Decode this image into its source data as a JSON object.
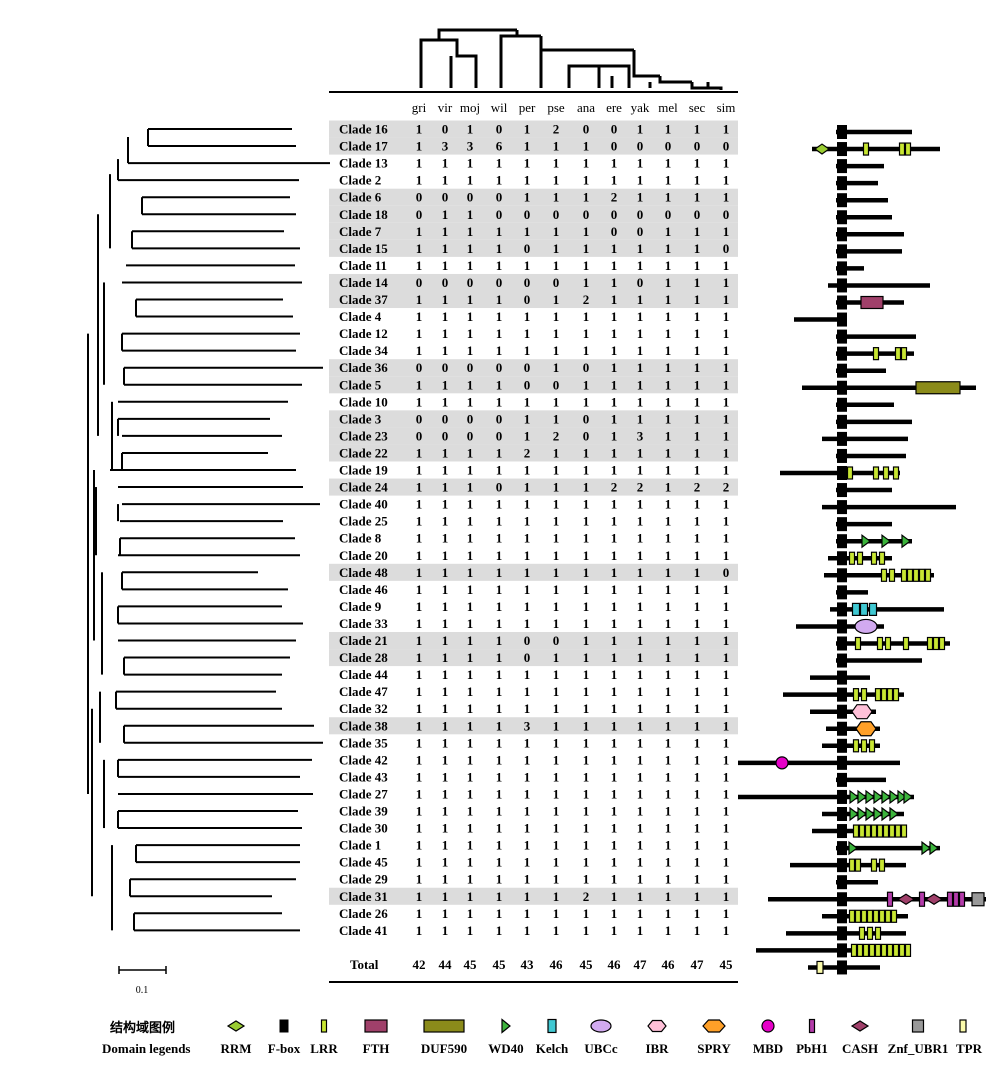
{
  "header": {
    "species": [
      "gri",
      "vir",
      "moj",
      "wil",
      "per",
      "pse",
      "ana",
      "ere",
      "yak",
      "mel",
      "sec",
      "sim"
    ]
  },
  "clades": [
    {
      "name": "Clade 16",
      "counts": [
        1,
        0,
        1,
        0,
        1,
        2,
        0,
        0,
        1,
        1,
        1,
        1
      ],
      "shaded": true
    },
    {
      "name": "Clade 17",
      "counts": [
        1,
        3,
        3,
        6,
        1,
        1,
        1,
        0,
        0,
        0,
        0,
        0
      ],
      "shaded": true
    },
    {
      "name": "Clade 13",
      "counts": [
        1,
        1,
        1,
        1,
        1,
        1,
        1,
        1,
        1,
        1,
        1,
        1
      ],
      "shaded": false
    },
    {
      "name": "Clade 2",
      "counts": [
        1,
        1,
        1,
        1,
        1,
        1,
        1,
        1,
        1,
        1,
        1,
        1
      ],
      "shaded": false
    },
    {
      "name": "Clade 6",
      "counts": [
        0,
        0,
        0,
        0,
        1,
        1,
        1,
        2,
        1,
        1,
        1,
        1
      ],
      "shaded": true
    },
    {
      "name": "Clade 18",
      "counts": [
        0,
        1,
        1,
        0,
        0,
        0,
        0,
        0,
        0,
        0,
        0,
        0
      ],
      "shaded": true
    },
    {
      "name": "Clade 7",
      "counts": [
        1,
        1,
        1,
        1,
        1,
        1,
        1,
        0,
        0,
        1,
        1,
        1
      ],
      "shaded": true
    },
    {
      "name": "Clade 15",
      "counts": [
        1,
        1,
        1,
        1,
        0,
        1,
        1,
        1,
        1,
        1,
        1,
        0
      ],
      "shaded": true
    },
    {
      "name": "Clade 11",
      "counts": [
        1,
        1,
        1,
        1,
        1,
        1,
        1,
        1,
        1,
        1,
        1,
        1
      ],
      "shaded": false
    },
    {
      "name": "Clade 14",
      "counts": [
        0,
        0,
        0,
        0,
        0,
        0,
        1,
        1,
        0,
        1,
        1,
        1
      ],
      "shaded": true
    },
    {
      "name": "Clade 37",
      "counts": [
        1,
        1,
        1,
        1,
        0,
        1,
        2,
        1,
        1,
        1,
        1,
        1
      ],
      "shaded": true
    },
    {
      "name": "Clade 4",
      "counts": [
        1,
        1,
        1,
        1,
        1,
        1,
        1,
        1,
        1,
        1,
        1,
        1
      ],
      "shaded": false
    },
    {
      "name": "Clade 12",
      "counts": [
        1,
        1,
        1,
        1,
        1,
        1,
        1,
        1,
        1,
        1,
        1,
        1
      ],
      "shaded": false
    },
    {
      "name": "Clade 34",
      "counts": [
        1,
        1,
        1,
        1,
        1,
        1,
        1,
        1,
        1,
        1,
        1,
        1
      ],
      "shaded": false
    },
    {
      "name": "Clade 36",
      "counts": [
        0,
        0,
        0,
        0,
        0,
        1,
        0,
        1,
        1,
        1,
        1,
        1
      ],
      "shaded": true
    },
    {
      "name": "Clade 5",
      "counts": [
        1,
        1,
        1,
        1,
        0,
        0,
        1,
        1,
        1,
        1,
        1,
        1
      ],
      "shaded": true
    },
    {
      "name": "Clade 10",
      "counts": [
        1,
        1,
        1,
        1,
        1,
        1,
        1,
        1,
        1,
        1,
        1,
        1
      ],
      "shaded": false
    },
    {
      "name": "Clade 3",
      "counts": [
        0,
        0,
        0,
        0,
        1,
        1,
        0,
        1,
        1,
        1,
        1,
        1
      ],
      "shaded": true
    },
    {
      "name": "Clade 23",
      "counts": [
        0,
        0,
        0,
        0,
        1,
        2,
        0,
        1,
        3,
        1,
        1,
        1
      ],
      "shaded": true
    },
    {
      "name": "Clade 22",
      "counts": [
        1,
        1,
        1,
        1,
        2,
        1,
        1,
        1,
        1,
        1,
        1,
        1
      ],
      "shaded": true
    },
    {
      "name": "Clade 19",
      "counts": [
        1,
        1,
        1,
        1,
        1,
        1,
        1,
        1,
        1,
        1,
        1,
        1
      ],
      "shaded": false
    },
    {
      "name": "Clade 24",
      "counts": [
        1,
        1,
        1,
        0,
        1,
        1,
        1,
        2,
        2,
        1,
        2,
        2
      ],
      "shaded": true
    },
    {
      "name": "Clade 40",
      "counts": [
        1,
        1,
        1,
        1,
        1,
        1,
        1,
        1,
        1,
        1,
        1,
        1
      ],
      "shaded": false
    },
    {
      "name": "Clade 25",
      "counts": [
        1,
        1,
        1,
        1,
        1,
        1,
        1,
        1,
        1,
        1,
        1,
        1
      ],
      "shaded": false
    },
    {
      "name": "Clade 8",
      "counts": [
        1,
        1,
        1,
        1,
        1,
        1,
        1,
        1,
        1,
        1,
        1,
        1
      ],
      "shaded": false
    },
    {
      "name": "Clade 20",
      "counts": [
        1,
        1,
        1,
        1,
        1,
        1,
        1,
        1,
        1,
        1,
        1,
        1
      ],
      "shaded": false
    },
    {
      "name": "Clade 48",
      "counts": [
        1,
        1,
        1,
        1,
        1,
        1,
        1,
        1,
        1,
        1,
        1,
        0
      ],
      "shaded": true
    },
    {
      "name": "Clade 46",
      "counts": [
        1,
        1,
        1,
        1,
        1,
        1,
        1,
        1,
        1,
        1,
        1,
        1
      ],
      "shaded": false
    },
    {
      "name": "Clade 9",
      "counts": [
        1,
        1,
        1,
        1,
        1,
        1,
        1,
        1,
        1,
        1,
        1,
        1
      ],
      "shaded": false
    },
    {
      "name": "Clade 33",
      "counts": [
        1,
        1,
        1,
        1,
        1,
        1,
        1,
        1,
        1,
        1,
        1,
        1
      ],
      "shaded": false
    },
    {
      "name": "Clade 21",
      "counts": [
        1,
        1,
        1,
        1,
        0,
        0,
        1,
        1,
        1,
        1,
        1,
        1
      ],
      "shaded": true
    },
    {
      "name": "Clade 28",
      "counts": [
        1,
        1,
        1,
        1,
        0,
        1,
        1,
        1,
        1,
        1,
        1,
        1
      ],
      "shaded": true
    },
    {
      "name": "Clade 44",
      "counts": [
        1,
        1,
        1,
        1,
        1,
        1,
        1,
        1,
        1,
        1,
        1,
        1
      ],
      "shaded": false
    },
    {
      "name": "Clade 47",
      "counts": [
        1,
        1,
        1,
        1,
        1,
        1,
        1,
        1,
        1,
        1,
        1,
        1
      ],
      "shaded": false
    },
    {
      "name": "Clade 32",
      "counts": [
        1,
        1,
        1,
        1,
        1,
        1,
        1,
        1,
        1,
        1,
        1,
        1
      ],
      "shaded": false
    },
    {
      "name": "Clade 38",
      "counts": [
        1,
        1,
        1,
        1,
        3,
        1,
        1,
        1,
        1,
        1,
        1,
        1
      ],
      "shaded": true
    },
    {
      "name": "Clade 35",
      "counts": [
        1,
        1,
        1,
        1,
        1,
        1,
        1,
        1,
        1,
        1,
        1,
        1
      ],
      "shaded": false
    },
    {
      "name": "Clade 42",
      "counts": [
        1,
        1,
        1,
        1,
        1,
        1,
        1,
        1,
        1,
        1,
        1,
        1
      ],
      "shaded": false
    },
    {
      "name": "Clade 43",
      "counts": [
        1,
        1,
        1,
        1,
        1,
        1,
        1,
        1,
        1,
        1,
        1,
        1
      ],
      "shaded": false
    },
    {
      "name": "Clade 27",
      "counts": [
        1,
        1,
        1,
        1,
        1,
        1,
        1,
        1,
        1,
        1,
        1,
        1
      ],
      "shaded": false
    },
    {
      "name": "Clade 39",
      "counts": [
        1,
        1,
        1,
        1,
        1,
        1,
        1,
        1,
        1,
        1,
        1,
        1
      ],
      "shaded": false
    },
    {
      "name": "Clade 30",
      "counts": [
        1,
        1,
        1,
        1,
        1,
        1,
        1,
        1,
        1,
        1,
        1,
        1
      ],
      "shaded": false
    },
    {
      "name": "Clade 1",
      "counts": [
        1,
        1,
        1,
        1,
        1,
        1,
        1,
        1,
        1,
        1,
        1,
        1
      ],
      "shaded": false
    },
    {
      "name": "Clade 45",
      "counts": [
        1,
        1,
        1,
        1,
        1,
        1,
        1,
        1,
        1,
        1,
        1,
        1
      ],
      "shaded": false
    },
    {
      "name": "Clade 29",
      "counts": [
        1,
        1,
        1,
        1,
        1,
        1,
        1,
        1,
        1,
        1,
        1,
        1
      ],
      "shaded": false
    },
    {
      "name": "Clade 31",
      "counts": [
        1,
        1,
        1,
        1,
        1,
        1,
        2,
        1,
        1,
        1,
        1,
        1
      ],
      "shaded": true
    },
    {
      "name": "Clade 26",
      "counts": [
        1,
        1,
        1,
        1,
        1,
        1,
        1,
        1,
        1,
        1,
        1,
        1
      ],
      "shaded": false
    },
    {
      "name": "Clade 41",
      "counts": [
        1,
        1,
        1,
        1,
        1,
        1,
        1,
        1,
        1,
        1,
        1,
        1
      ],
      "shaded": false
    }
  ],
  "total": {
    "label": "Total",
    "values": [
      42,
      44,
      45,
      45,
      43,
      46,
      45,
      46,
      47,
      46,
      47,
      45
    ]
  },
  "scale_bar": {
    "label": "0.1"
  },
  "legend": {
    "title_cn": "结构域图例",
    "title_en": "Domain legends",
    "items": [
      {
        "name": "RRM",
        "shape": "diamond",
        "color": "#9acd32"
      },
      {
        "name": "F-box",
        "shape": "black-box",
        "color": "#000000"
      },
      {
        "name": "LRR",
        "shape": "small-rect",
        "color": "#c8e632"
      },
      {
        "name": "FTH",
        "shape": "rect",
        "color": "#a0406a"
      },
      {
        "name": "DUF590",
        "shape": "wide-rect",
        "color": "#8b8b1a"
      },
      {
        "name": "WD40",
        "shape": "triangle",
        "color": "#3cb43c"
      },
      {
        "name": "Kelch",
        "shape": "small-rect",
        "color": "#40c8d2"
      },
      {
        "name": "UBCc",
        "shape": "ellipse",
        "color": "#d2aaf0"
      },
      {
        "name": "IBR",
        "shape": "hexagon",
        "color": "#ffc0d8"
      },
      {
        "name": "SPRY",
        "shape": "hexagon",
        "color": "#ffa028"
      },
      {
        "name": "MBD",
        "shape": "circle",
        "color": "#e600c8"
      },
      {
        "name": "PbH1",
        "shape": "thin-rect",
        "color": "#b43caa"
      },
      {
        "name": "CASH",
        "shape": "diamond",
        "color": "#a0406a"
      },
      {
        "name": "Znf_UBR1",
        "shape": "square",
        "color": "#999999"
      },
      {
        "name": "TPR",
        "shape": "thin-rect",
        "color": "#fafaaa"
      }
    ]
  }
}
